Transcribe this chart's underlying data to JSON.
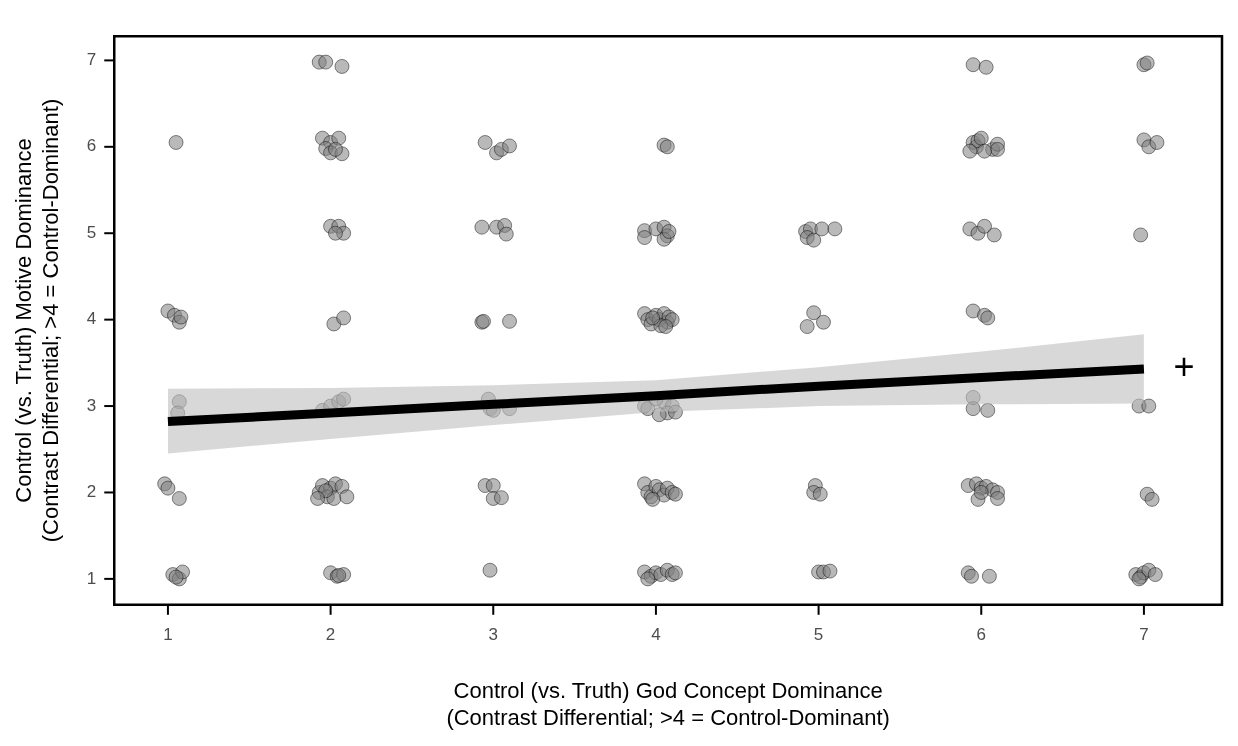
{
  "chart_data": {
    "type": "scatter",
    "xlabel": "Control (vs. Truth) God Concept Dominance\n(Contrast Differential; >4 = Control-Dominant)",
    "ylabel": "Control (vs. Truth) Motive Dominance\n(Contrast Differential; >4 = Control-Dominant)",
    "xlim": [
      0.67,
      7.48
    ],
    "ylim": [
      0.7,
      7.28
    ],
    "xticks": [
      1,
      2,
      3,
      4,
      5,
      6,
      7
    ],
    "yticks": [
      1,
      2,
      3,
      4,
      5,
      6,
      7
    ],
    "grid": false,
    "legend": false,
    "annotations": [
      "+"
    ],
    "series": [
      {
        "marker": "circle",
        "color": "#808080",
        "x": [
          1.05,
          1.0,
          1.04,
          1.07,
          1.08,
          1.07,
          1.06,
          0.98,
          1.0,
          1.07,
          1.03,
          1.07,
          1.09,
          1.05,
          1.93,
          1.97,
          2.07,
          1.95,
          2.0,
          2.05,
          1.97,
          2.0,
          2.07,
          2.03,
          2.0,
          2.05,
          2.08,
          2.03,
          2.02,
          2.08,
          1.95,
          2.0,
          2.05,
          2.08,
          1.93,
          1.95,
          2.0,
          2.03,
          2.07,
          1.98,
          2.02,
          1.97,
          2.1,
          1.92,
          2.0,
          2.04,
          2.08,
          2.05,
          2.95,
          3.02,
          3.05,
          3.1,
          2.93,
          3.02,
          3.07,
          3.08,
          2.93,
          2.94,
          3.1,
          2.97,
          2.98,
          3.0,
          3.1,
          2.95,
          3.0,
          3.0,
          3.05,
          2.98,
          4.05,
          4.07,
          3.93,
          3.93,
          4.0,
          4.05,
          4.07,
          4.05,
          4.08,
          3.93,
          3.95,
          3.97,
          4.0,
          4.02,
          4.05,
          4.07,
          4.08,
          4.1,
          4.03,
          3.98,
          4.06,
          3.93,
          3.95,
          4.05,
          4.1,
          4.0,
          4.07,
          4.12,
          4.02,
          3.93,
          3.95,
          3.97,
          4.0,
          4.02,
          4.05,
          4.07,
          4.1,
          4.12,
          3.98,
          3.93,
          3.97,
          4.0,
          4.03,
          4.07,
          4.1,
          4.12,
          3.95,
          4.92,
          4.95,
          4.93,
          4.97,
          5.02,
          5.1,
          4.93,
          4.97,
          5.03,
          4.98,
          4.97,
          5.01,
          5.0,
          5.03,
          5.07,
          5.95,
          6.03,
          5.95,
          5.97,
          5.98,
          5.93,
          6.0,
          6.07,
          6.1,
          6.1,
          6.02,
          5.93,
          5.98,
          6.02,
          6.08,
          5.95,
          6.02,
          6.04,
          5.95,
          5.95,
          6.04,
          5.92,
          5.97,
          6.0,
          6.03,
          6.07,
          6.1,
          6.1,
          5.98,
          6.0,
          5.92,
          5.94,
          6.05,
          7.0,
          7.02,
          7.0,
          7.03,
          7.08,
          6.98,
          6.97,
          7.03,
          7.02,
          7.05,
          6.95,
          6.98,
          7.0,
          7.03,
          7.07,
          6.97
        ],
        "values": [
          6.05,
          4.1,
          4.05,
          3.97,
          4.03,
          3.05,
          2.92,
          2.1,
          2.05,
          1.93,
          1.05,
          1.0,
          1.08,
          1.02,
          6.98,
          6.98,
          6.93,
          6.1,
          6.05,
          6.1,
          5.98,
          5.93,
          5.92,
          5.97,
          5.08,
          5.08,
          5.0,
          5.0,
          3.95,
          4.02,
          2.95,
          3.0,
          3.05,
          3.08,
          2.0,
          2.08,
          2.05,
          2.1,
          2.07,
          1.95,
          1.93,
          2.02,
          1.95,
          1.93,
          1.07,
          1.03,
          1.05,
          1.04,
          6.05,
          5.93,
          5.97,
          6.01,
          5.07,
          5.07,
          5.09,
          4.99,
          3.97,
          3.98,
          3.98,
          3.08,
          2.97,
          2.95,
          2.97,
          2.08,
          2.08,
          1.93,
          1.94,
          1.1,
          6.02,
          6.0,
          5.03,
          4.95,
          5.05,
          5.07,
          4.97,
          4.93,
          5.02,
          4.07,
          4.0,
          3.95,
          4.05,
          4.0,
          4.07,
          3.97,
          4.03,
          4.0,
          3.93,
          4.02,
          3.92,
          3.0,
          2.97,
          3.05,
          3.0,
          3.08,
          2.92,
          2.93,
          2.9,
          2.1,
          2.0,
          1.95,
          2.07,
          2.03,
          1.97,
          2.05,
          2.0,
          1.98,
          1.92,
          1.08,
          1.03,
          1.07,
          1.05,
          1.1,
          1.05,
          1.07,
          1.0,
          5.02,
          5.05,
          4.95,
          4.92,
          5.05,
          5.05,
          3.92,
          4.08,
          3.97,
          2.08,
          2.0,
          1.98,
          1.08,
          1.08,
          1.09,
          6.95,
          6.92,
          6.05,
          6.0,
          6.07,
          5.95,
          6.1,
          5.97,
          6.03,
          5.97,
          5.95,
          5.05,
          5.0,
          5.08,
          4.98,
          4.1,
          4.05,
          4.02,
          3.1,
          2.97,
          2.95,
          2.08,
          2.1,
          2.05,
          2.07,
          2.03,
          2.0,
          1.93,
          1.92,
          2.0,
          1.07,
          1.03,
          1.03,
          6.95,
          6.97,
          6.08,
          6.0,
          6.05,
          4.98,
          3.0,
          3.0,
          1.98,
          1.92,
          1.05,
          1.02,
          1.07,
          1.1,
          1.05,
          1.0
        ]
      },
      {
        "type": "line",
        "marker": "none",
        "color": "#000000",
        "x": [
          1,
          2,
          3,
          4,
          5,
          6,
          7
        ],
        "values": [
          2.82,
          2.92,
          3.02,
          3.12,
          3.23,
          3.33,
          3.43
        ],
        "lower": [
          2.45,
          2.62,
          2.78,
          2.93,
          3.0,
          3.02,
          3.03
        ],
        "upper": [
          3.2,
          3.21,
          3.24,
          3.3,
          3.45,
          3.63,
          3.83
        ]
      }
    ]
  }
}
